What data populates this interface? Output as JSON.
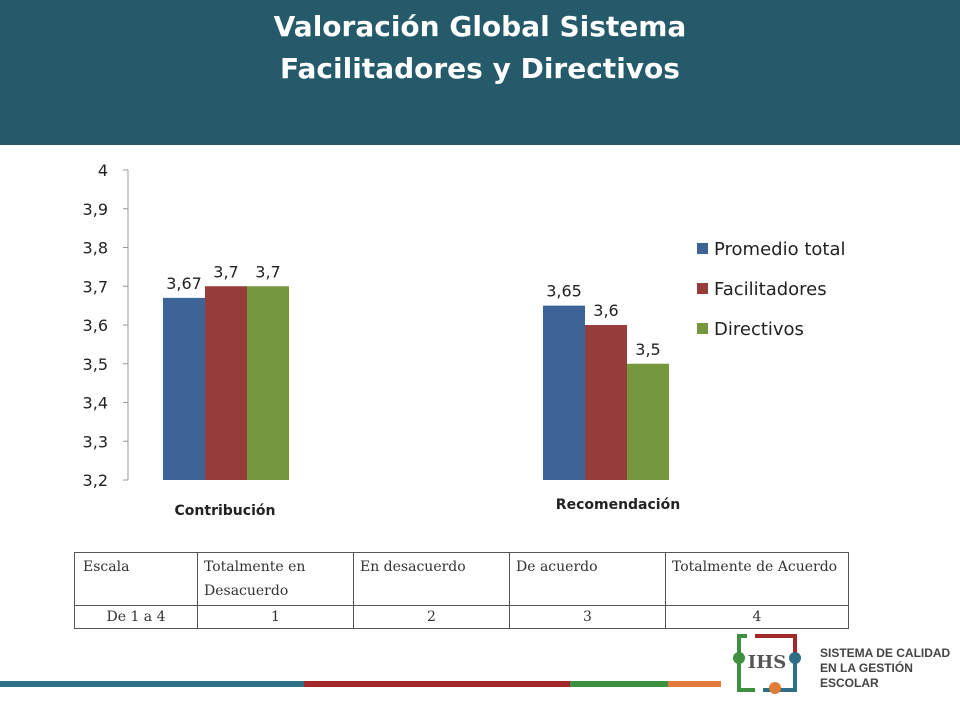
{
  "header": {
    "title_line1": "Valoración Global Sistema",
    "title_line2": "Facilitadores y Directivos",
    "background": "#245a69"
  },
  "chart_data": {
    "type": "bar",
    "categories": [
      "Contribución",
      "Recomendación"
    ],
    "series": [
      {
        "name": "Promedio total",
        "values": [
          3.67,
          3.65
        ],
        "labels": [
          "3,67",
          "3,65"
        ],
        "color": "#3c6496"
      },
      {
        "name": "Facilitadores",
        "values": [
          3.7,
          3.6
        ],
        "labels": [
          "3,7",
          "3,6"
        ],
        "color": "#963c3a"
      },
      {
        "name": "Directivos",
        "values": [
          3.7,
          3.5
        ],
        "labels": [
          "3,7",
          "3,5"
        ],
        "color": "#76973e"
      }
    ],
    "ylim": [
      3.2,
      4.0
    ],
    "yticks": [
      "3,2",
      "3,3",
      "3,4",
      "3,5",
      "3,6",
      "3,7",
      "3,8",
      "3,9",
      "4"
    ],
    "ytick_values": [
      3.2,
      3.3,
      3.4,
      3.5,
      3.6,
      3.7,
      3.8,
      3.9,
      4.0
    ],
    "legend_position": "right",
    "grid": false
  },
  "scale_table": {
    "header": [
      "Escala",
      "Totalmente en Desacuerdo",
      "En desacuerdo",
      "De acuerdo",
      "Totalmente  de Acuerdo"
    ],
    "row": [
      "De 1 a 4",
      "1",
      "2",
      "3",
      "4"
    ]
  },
  "footer": {
    "stripe_colors": [
      "#2e6f86",
      "#a3282a",
      "#3f8f40",
      "#e07b39"
    ],
    "logo_text": "SISTEMA DE CALIDAD\nEN LA GESTIÓN\nESCOLAR",
    "logo_mark_text": "IHS"
  }
}
